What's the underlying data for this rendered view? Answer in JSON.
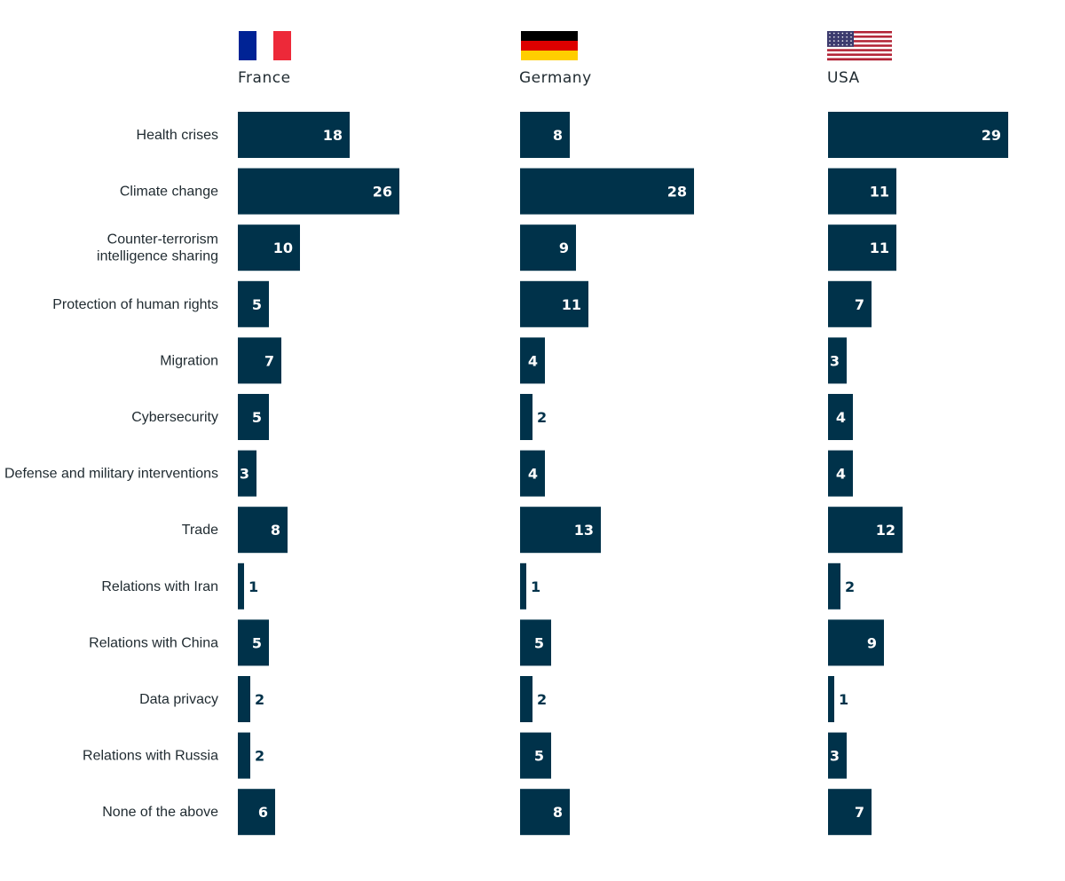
{
  "chart_data": {
    "type": "bar",
    "orientation": "horizontal",
    "categories": [
      "Health crises",
      "Climate change",
      "Counter-terrorism intelligence sharing",
      "Protection of human rights",
      "Migration",
      "Cybersecurity",
      "Defense and military interventions",
      "Trade",
      "Relations with Iran",
      "Relations with China",
      "Data privacy",
      "Relations with Russia",
      "None of the above"
    ],
    "category_lines": [
      [
        "Health crises"
      ],
      [
        "Climate change"
      ],
      [
        "Counter-terrorism",
        "intelligence sharing"
      ],
      [
        "Protection of human rights"
      ],
      [
        "Migration"
      ],
      [
        "Cybersecurity"
      ],
      [
        "Defense and military interventions"
      ],
      [
        "Trade"
      ],
      [
        "Relations with Iran"
      ],
      [
        "Relations with China"
      ],
      [
        "Data privacy"
      ],
      [
        "Relations with Russia"
      ],
      [
        "None of the above"
      ]
    ],
    "series": [
      {
        "name": "France",
        "flag": "france-flag",
        "values": [
          18,
          26,
          10,
          5,
          7,
          5,
          3,
          8,
          1,
          5,
          2,
          2,
          6
        ]
      },
      {
        "name": "Germany",
        "flag": "germany-flag",
        "values": [
          8,
          28,
          9,
          11,
          4,
          2,
          4,
          13,
          1,
          5,
          2,
          5,
          8
        ]
      },
      {
        "name": "USA",
        "flag": "usa-flag",
        "values": [
          29,
          11,
          11,
          7,
          3,
          4,
          4,
          12,
          2,
          9,
          1,
          3,
          7
        ]
      }
    ],
    "xlim": [
      0,
      29
    ],
    "grid": false,
    "legend": "none",
    "title": "",
    "xlabel": "",
    "ylabel": ""
  },
  "colors": {
    "bar": "#00324a",
    "label_inside": "#ffffff",
    "label_outside": "#00324a",
    "text": "#1f2a30",
    "france_blue": "#002395",
    "france_red": "#ed2939",
    "germany_black": "#000000",
    "germany_red": "#dd0000",
    "germany_gold": "#ffce00",
    "usa_red": "#b22234",
    "usa_blue": "#3c3b6e"
  }
}
